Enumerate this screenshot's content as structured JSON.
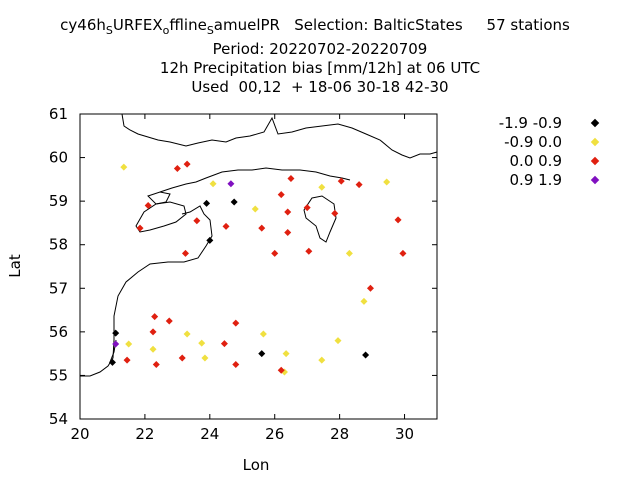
{
  "title": {
    "line1_a": "cy46h",
    "line1_sub1": "S",
    "line1_b": "URFEX",
    "line1_sub2": "o",
    "line1_c": "ffline",
    "line1_sub3": "S",
    "line1_d": "amuelPR   Selection: BalticStates     57 stations",
    "line2": "Period: 20220702-20220709",
    "line3": "12h Precipitation bias [mm/12h] at  06 UTC",
    "line4": "Used  00,12  + 18-06 30-18 42-30"
  },
  "axes": {
    "xlabel": "Lon",
    "ylabel": "Lat",
    "xlim": [
      20,
      31
    ],
    "ylim": [
      54,
      61
    ],
    "xticks": [
      "20",
      "22",
      "24",
      "26",
      "28",
      "30"
    ],
    "yticks": [
      "54",
      "55",
      "56",
      "57",
      "58",
      "59",
      "60",
      "61"
    ]
  },
  "legend": [
    {
      "label": "-1.9 -0.9",
      "color": "#000000"
    },
    {
      "label": "-0.9 0.0",
      "color": "#f0e040"
    },
    {
      "label": "0.0 0.9",
      "color": "#e02010"
    },
    {
      "label": "0.9 1.9",
      "color": "#8010c0"
    }
  ],
  "chart_data": {
    "type": "scatter",
    "xlabel": "Lon",
    "ylabel": "Lat",
    "xlim": [
      20,
      31
    ],
    "ylim": [
      54,
      61
    ],
    "series": [
      {
        "name": "-1.9 -0.9",
        "color": "#000000",
        "points": [
          [
            23.9,
            58.95
          ],
          [
            24.75,
            58.98
          ],
          [
            24.0,
            58.1
          ],
          [
            21.1,
            55.97
          ],
          [
            21.0,
            55.3
          ],
          [
            25.6,
            55.5
          ],
          [
            28.8,
            55.47
          ]
        ]
      },
      {
        "name": "-0.9 0.0",
        "color": "#f0e040",
        "points": [
          [
            21.35,
            59.78
          ],
          [
            24.1,
            59.4
          ],
          [
            25.4,
            58.82
          ],
          [
            27.45,
            59.32
          ],
          [
            29.45,
            59.44
          ],
          [
            28.3,
            57.8
          ],
          [
            28.75,
            56.7
          ],
          [
            21.5,
            55.72
          ],
          [
            22.25,
            55.6
          ],
          [
            23.3,
            55.95
          ],
          [
            23.75,
            55.74
          ],
          [
            23.85,
            55.4
          ],
          [
            25.65,
            55.95
          ],
          [
            26.35,
            55.5
          ],
          [
            26.3,
            55.08
          ],
          [
            27.45,
            55.35
          ],
          [
            27.95,
            55.8
          ]
        ]
      },
      {
        "name": "0.0 0.9",
        "color": "#e02010",
        "points": [
          [
            23.0,
            59.75
          ],
          [
            23.3,
            59.85
          ],
          [
            22.1,
            58.9
          ],
          [
            23.6,
            58.55
          ],
          [
            24.5,
            58.42
          ],
          [
            21.85,
            58.38
          ],
          [
            23.25,
            57.8
          ],
          [
            25.6,
            58.38
          ],
          [
            26.2,
            59.15
          ],
          [
            26.5,
            59.52
          ],
          [
            26.4,
            58.75
          ],
          [
            26.4,
            58.28
          ],
          [
            27.0,
            58.85
          ],
          [
            27.85,
            58.72
          ],
          [
            28.05,
            59.46
          ],
          [
            28.6,
            59.38
          ],
          [
            29.8,
            58.57
          ],
          [
            29.95,
            57.8
          ],
          [
            27.05,
            57.85
          ],
          [
            26.0,
            57.8
          ],
          [
            28.95,
            57.0
          ],
          [
            22.3,
            56.35
          ],
          [
            22.25,
            56.0
          ],
          [
            22.75,
            56.25
          ],
          [
            24.8,
            56.2
          ],
          [
            24.45,
            55.73
          ],
          [
            21.45,
            55.35
          ],
          [
            22.35,
            55.25
          ],
          [
            23.15,
            55.4
          ],
          [
            24.8,
            55.25
          ],
          [
            26.2,
            55.12
          ]
        ]
      },
      {
        "name": "0.9 1.9",
        "color": "#8010c0",
        "points": [
          [
            24.65,
            59.4
          ],
          [
            21.1,
            55.72
          ]
        ]
      }
    ]
  }
}
